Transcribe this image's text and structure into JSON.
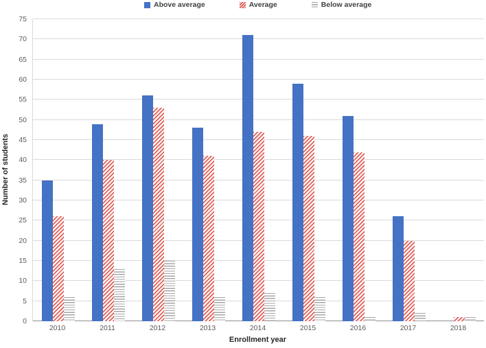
{
  "colors": {
    "above_average_bar": "#4472C4",
    "average_hatch": "#DC4B45",
    "below_average_lines": "#A5A5A5",
    "gridline": "#D9D9D9",
    "axis_line": "#8E8E8E",
    "tick_text": "#595959",
    "legend_text": "#3F3F3F"
  },
  "chart_data": {
    "type": "bar",
    "title": "",
    "xlabel": "Enrollment year",
    "ylabel": "Number of students",
    "categories": [
      "2010",
      "2011",
      "2012",
      "2013",
      "2014",
      "2015",
      "2016",
      "2017",
      "2018"
    ],
    "series": [
      {
        "name": "Above average",
        "style": "solid-blue",
        "values": [
          35,
          49,
          56,
          48,
          71,
          59,
          51,
          26,
          0
        ]
      },
      {
        "name": "Average",
        "style": "red-diagonal-hatch",
        "values": [
          26,
          40,
          53,
          41,
          47,
          46,
          42,
          20,
          1
        ]
      },
      {
        "name": "Below average",
        "style": "gray-horizontal-lines",
        "values": [
          6,
          13,
          15,
          6,
          7,
          6,
          1,
          2,
          1
        ]
      }
    ],
    "ylim": [
      0,
      75
    ],
    "ytick_step": 5,
    "grid": true,
    "legend_position": "top-center"
  }
}
